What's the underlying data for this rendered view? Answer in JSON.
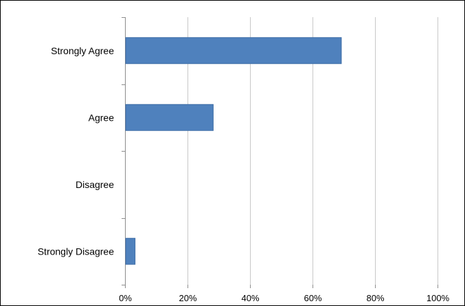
{
  "chart_data": {
    "type": "bar",
    "orientation": "horizontal",
    "categories": [
      "Strongly Agree",
      "Agree",
      "Disagree",
      "Strongly Disagree"
    ],
    "values": [
      69,
      28,
      0,
      3
    ],
    "unit": "%",
    "xlim": [
      0,
      100
    ],
    "x_ticks": [
      "0%",
      "20%",
      "40%",
      "60%",
      "80%",
      "100%"
    ],
    "title": "",
    "xlabel": "",
    "ylabel": "",
    "grid": true,
    "legend": "none",
    "colors": {
      "bar": "#4f81bd",
      "bar_stroke": "#3e6da6",
      "grid": "#c8c8c8",
      "axis": "#8c8c8c"
    }
  }
}
